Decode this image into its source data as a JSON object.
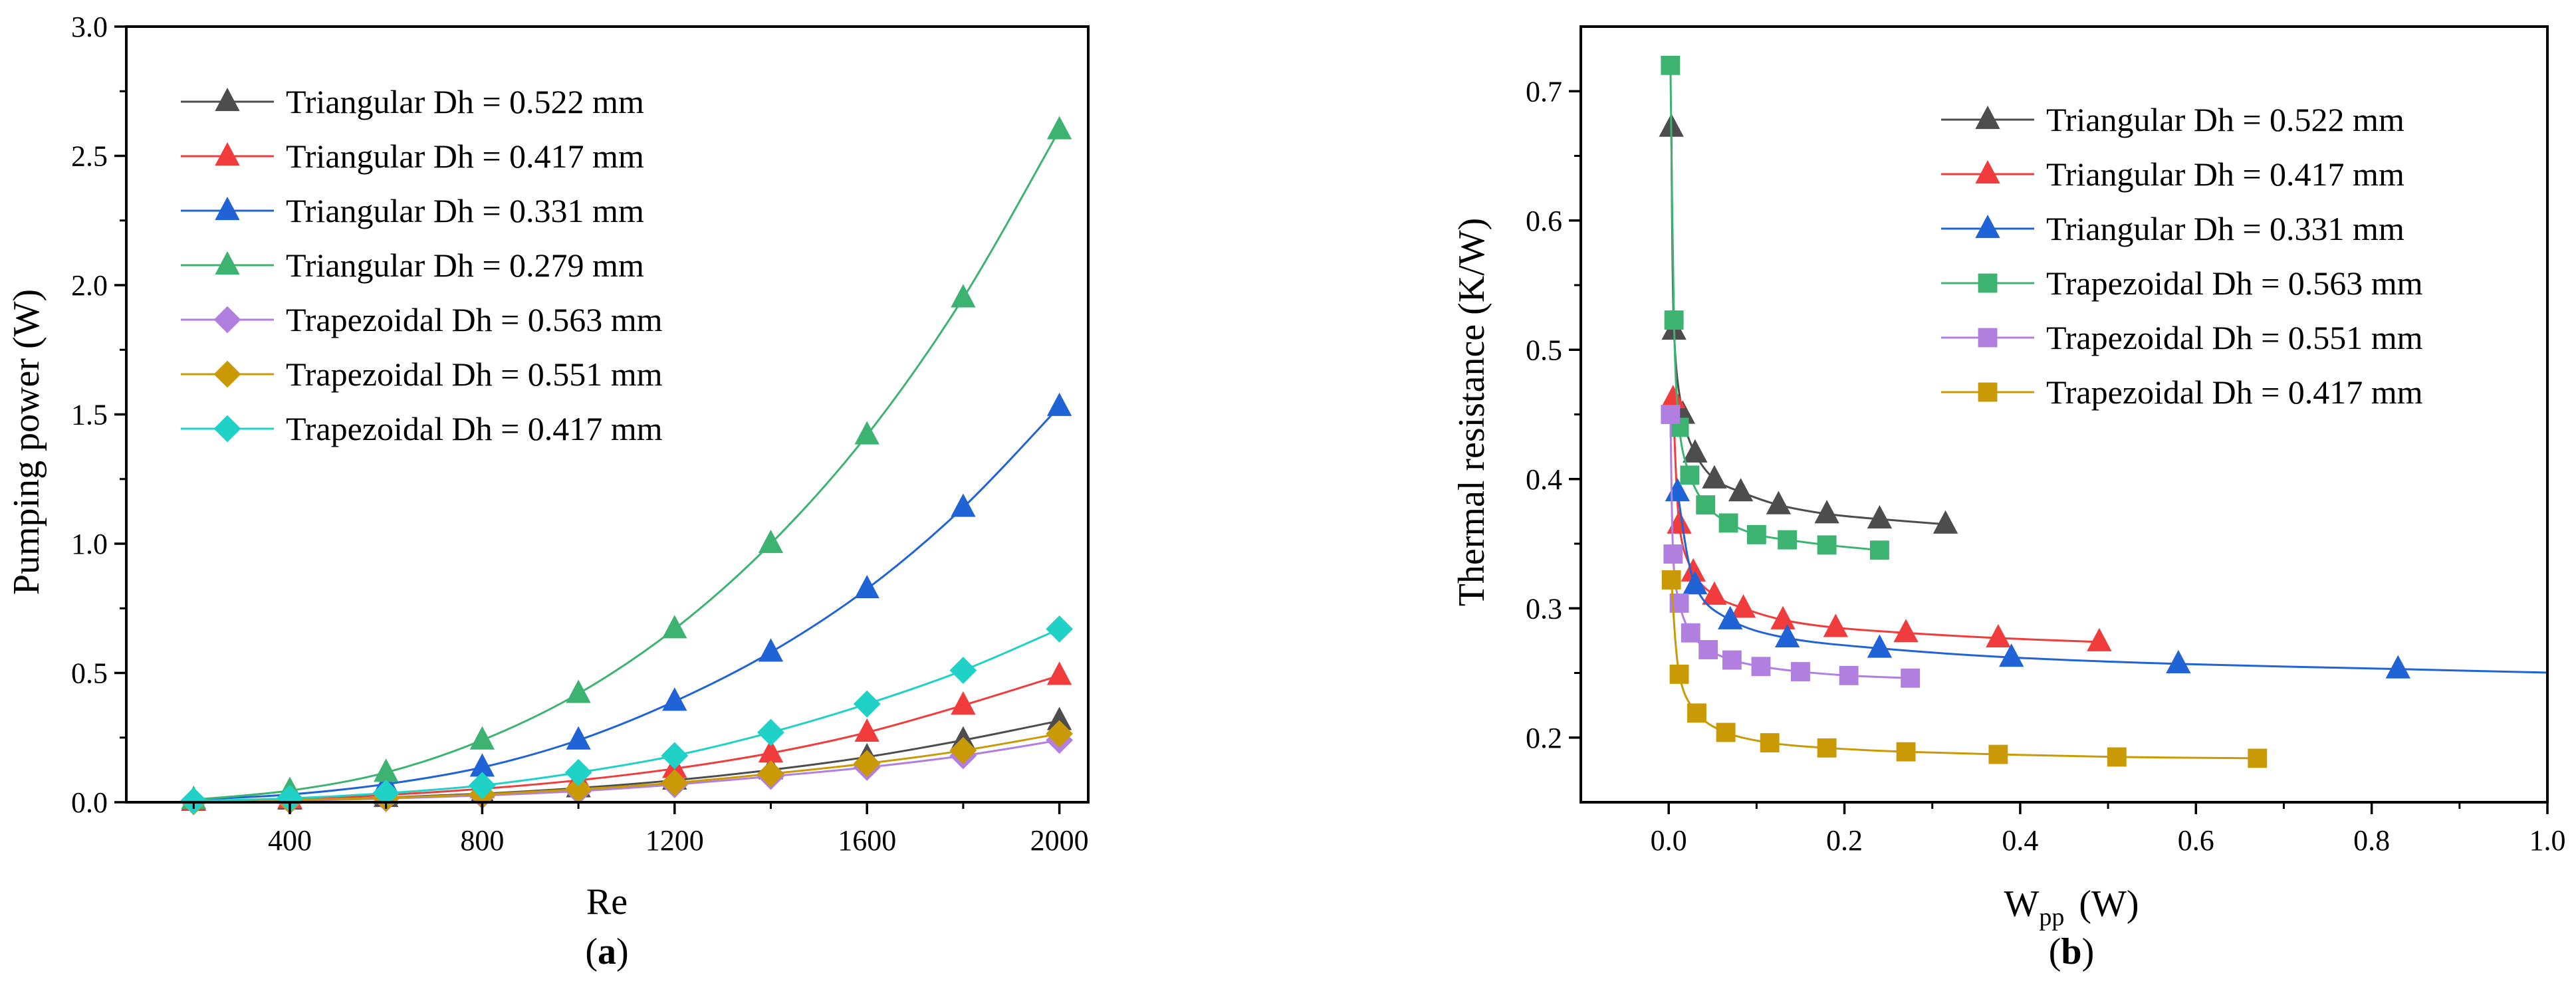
{
  "chart_data": [
    {
      "type": "line",
      "panel_label": "(a)",
      "panel_letter": "a",
      "xlabel": "Re",
      "ylabel": "Pumping power  (W)",
      "xlim": [
        60,
        2060
      ],
      "ylim": [
        0,
        3.0
      ],
      "xticks": [
        400,
        800,
        1200,
        1600,
        2000
      ],
      "xtick_labels": [
        "400",
        "800",
        "1200",
        "1600",
        "2000"
      ],
      "yticks": [
        0,
        0.5,
        1.0,
        1.5,
        2.0,
        2.5,
        3.0
      ],
      "ytick_labels": [
        "0.0",
        "0.5",
        "1.0",
        "1.5",
        "2.0",
        "2.5",
        "3.0"
      ],
      "legend_position": "top-left",
      "series": [
        {
          "name": "Triangular Dh = 0.522 mm",
          "color": "#4d4d4d",
          "marker": "triangle",
          "x": [
            200,
            400,
            600,
            800,
            1000,
            1200,
            1400,
            1600,
            1800,
            2000
          ],
          "y": [
            0.003,
            0.008,
            0.018,
            0.033,
            0.055,
            0.085,
            0.125,
            0.175,
            0.24,
            0.315
          ]
        },
        {
          "name": "Triangular Dh = 0.417 mm",
          "color": "#f03c3c",
          "marker": "triangle",
          "x": [
            200,
            400,
            600,
            800,
            1000,
            1200,
            1400,
            1600,
            1800,
            2000
          ],
          "y": [
            0.005,
            0.012,
            0.028,
            0.052,
            0.085,
            0.13,
            0.19,
            0.27,
            0.375,
            0.49
          ]
        },
        {
          "name": "Triangular Dh = 0.331 mm",
          "color": "#1f63d6",
          "marker": "triangle",
          "x": [
            200,
            400,
            600,
            800,
            1000,
            1200,
            1400,
            1600,
            1800,
            2000
          ],
          "y": [
            0.01,
            0.03,
            0.07,
            0.135,
            0.24,
            0.39,
            0.58,
            0.825,
            1.14,
            1.53
          ]
        },
        {
          "name": "Triangular Dh = 0.279 mm",
          "color": "#3cb371",
          "marker": "triangle",
          "x": [
            200,
            400,
            600,
            800,
            1000,
            1200,
            1400,
            1600,
            1800,
            2000
          ],
          "y": [
            0.01,
            0.045,
            0.115,
            0.24,
            0.42,
            0.67,
            1.0,
            1.42,
            1.95,
            2.6
          ]
        },
        {
          "name": "Trapezoidal Dh = 0.563 mm",
          "color": "#b07fe0",
          "marker": "diamond",
          "x": [
            200,
            400,
            600,
            800,
            1000,
            1200,
            1400,
            1600,
            1800,
            2000
          ],
          "y": [
            0.002,
            0.006,
            0.014,
            0.026,
            0.043,
            0.068,
            0.1,
            0.135,
            0.18,
            0.24
          ]
        },
        {
          "name": "Trapezoidal Dh = 0.551 mm",
          "color": "#c99a06",
          "marker": "diamond",
          "x": [
            200,
            400,
            600,
            800,
            1000,
            1200,
            1400,
            1600,
            1800,
            2000
          ],
          "y": [
            0.003,
            0.008,
            0.017,
            0.03,
            0.05,
            0.075,
            0.11,
            0.15,
            0.2,
            0.265
          ]
        },
        {
          "name": "Trapezoidal Dh = 0.417 mm",
          "color": "#1fd1c6",
          "marker": "diamond",
          "x": [
            200,
            400,
            600,
            800,
            1000,
            1200,
            1400,
            1600,
            1800,
            2000
          ],
          "y": [
            0.005,
            0.015,
            0.035,
            0.065,
            0.115,
            0.18,
            0.27,
            0.38,
            0.51,
            0.67
          ]
        }
      ]
    },
    {
      "type": "line",
      "panel_label": "(b)",
      "panel_letter": "b",
      "xlabel": "W",
      "xlabel_sub": "pp",
      "xlabel_unit": "(W)",
      "ylabel": "Thermal resistance  (K/W)",
      "xlim": [
        -0.1,
        1.0
      ],
      "ylim": [
        0.15,
        0.75
      ],
      "xticks": [
        0.0,
        0.2,
        0.4,
        0.6,
        0.8,
        1.0
      ],
      "xtick_labels": [
        "0.0",
        "0.2",
        "0.4",
        "0.6",
        "0.8",
        "1.0"
      ],
      "yticks": [
        0.2,
        0.3,
        0.4,
        0.5,
        0.6,
        0.7
      ],
      "ytick_labels": [
        "0.2",
        "0.3",
        "0.4",
        "0.5",
        "0.6",
        "0.7"
      ],
      "legend_position": "top-right",
      "series": [
        {
          "name": "Triangular Dh = 0.522 mm",
          "color": "#4d4d4d",
          "marker": "triangle",
          "x": [
            0.003,
            0.006,
            0.016,
            0.03,
            0.052,
            0.082,
            0.125,
            0.18,
            0.24,
            0.315
          ],
          "y": [
            0.672,
            0.515,
            0.45,
            0.42,
            0.4,
            0.39,
            0.38,
            0.373,
            0.369,
            0.365
          ]
        },
        {
          "name": "Triangular Dh = 0.417 mm",
          "color": "#f03c3c",
          "marker": "triangle",
          "x": [
            0.005,
            0.012,
            0.028,
            0.052,
            0.085,
            0.13,
            0.19,
            0.27,
            0.375,
            0.49
          ],
          "y": [
            0.462,
            0.365,
            0.328,
            0.31,
            0.3,
            0.291,
            0.285,
            0.281,
            0.277,
            0.274
          ]
        },
        {
          "name": "Triangular Dh = 0.331 mm",
          "color": "#1f63d6",
          "marker": "triangle",
          "x": [
            0.01,
            0.03,
            0.07,
            0.135,
            0.24,
            0.39,
            0.58,
            0.83
          ],
          "y": [
            0.39,
            0.318,
            0.291,
            0.277,
            0.269,
            0.262,
            0.257,
            0.253
          ],
          "trend_to_edge": true
        },
        {
          "name": "Trapezoidal Dh = 0.563 mm",
          "color": "#3cb371",
          "marker": "square",
          "x": [
            0.002,
            0.006,
            0.012,
            0.024,
            0.042,
            0.068,
            0.1,
            0.135,
            0.18,
            0.24
          ],
          "y": [
            0.72,
            0.523,
            0.44,
            0.403,
            0.38,
            0.366,
            0.357,
            0.353,
            0.349,
            0.345
          ]
        },
        {
          "name": "Trapezoidal Dh = 0.551 mm",
          "color": "#b07fe0",
          "marker": "square",
          "x": [
            0.002,
            0.005,
            0.012,
            0.025,
            0.045,
            0.072,
            0.105,
            0.15,
            0.205,
            0.275
          ],
          "y": [
            0.45,
            0.342,
            0.304,
            0.281,
            0.268,
            0.26,
            0.255,
            0.251,
            0.248,
            0.246
          ]
        },
        {
          "name": "Trapezoidal Dh = 0.417 mm",
          "color": "#c99a06",
          "marker": "square",
          "x": [
            0.003,
            0.012,
            0.032,
            0.065,
            0.115,
            0.18,
            0.27,
            0.375,
            0.51,
            0.67
          ],
          "y": [
            0.322,
            0.249,
            0.219,
            0.204,
            0.196,
            0.192,
            0.189,
            0.187,
            0.185,
            0.184
          ]
        }
      ]
    }
  ]
}
